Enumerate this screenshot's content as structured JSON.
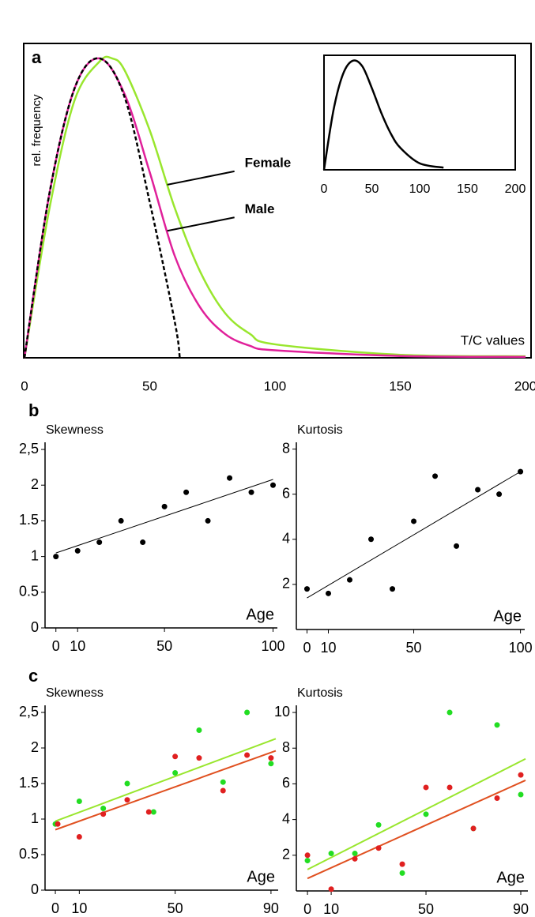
{
  "panel_labels": [
    "a",
    "b",
    "c"
  ],
  "chart_data": [
    {
      "type": "line",
      "ylabel": "rel. frequency",
      "xlabel": "T/C values",
      "xlim": [
        -0.3,
        202.2
      ],
      "ylim": [
        0,
        1.05
      ],
      "xticks": [
        0,
        50,
        100,
        150,
        200
      ],
      "frame": true,
      "series": [
        {
          "name": "Female",
          "color": "#99e62e",
          "x": [
            0,
            10,
            20,
            30,
            35,
            40,
            50,
            60,
            70,
            80,
            90,
            100,
            150,
            200
          ],
          "values": [
            0,
            0.5,
            0.86,
            0.99,
            1.0,
            0.96,
            0.76,
            0.5,
            0.29,
            0.15,
            0.08,
            0.045,
            0.01,
            0.005
          ]
        },
        {
          "name": "Male",
          "color": "#e0209a",
          "x": [
            0,
            10,
            20,
            30,
            40,
            50,
            60,
            70,
            80,
            90,
            100,
            150,
            200
          ],
          "values": [
            0,
            0.55,
            0.9,
            1.0,
            0.88,
            0.62,
            0.34,
            0.17,
            0.08,
            0.04,
            0.025,
            0.006,
            0.003
          ]
        },
        {
          "color": "#000000",
          "dashed": true,
          "x": [
            0,
            10,
            20,
            30,
            40,
            50,
            60,
            62
          ],
          "values": [
            0,
            0.55,
            0.9,
            1.0,
            0.87,
            0.52,
            0.12,
            0
          ]
        }
      ]
    },
    {
      "type": "line",
      "xlim": [
        0,
        200
      ],
      "ylim": [
        0,
        1.05
      ],
      "xticks": [
        0,
        50,
        100,
        150,
        200
      ],
      "frame": true,
      "series": [
        {
          "color": "#000000",
          "x": [
            0,
            10,
            20,
            30,
            40,
            50,
            60,
            70,
            80,
            100,
            125
          ],
          "values": [
            0,
            0.55,
            0.88,
            1.0,
            0.95,
            0.75,
            0.52,
            0.33,
            0.2,
            0.06,
            0.02
          ]
        }
      ]
    },
    {
      "type": "scatter",
      "ylabel": "Skewness",
      "xlabel": "Age",
      "xlim": [
        -5,
        102
      ],
      "ylim": [
        0,
        2.6
      ],
      "xticks": [
        0,
        10,
        50,
        100
      ],
      "yticks": [
        0,
        0.5,
        1,
        1.5,
        2,
        {
          "value": 2.5,
          "label": "2,5"
        }
      ],
      "series": [
        {
          "color": "#000000",
          "x": [
            0,
            10,
            20,
            30,
            40,
            50,
            60,
            70,
            80,
            90,
            100
          ],
          "values": [
            1.0,
            1.08,
            1.2,
            1.5,
            1.2,
            1.7,
            1.9,
            1.5,
            2.1,
            1.9,
            2.0
          ],
          "trend": {
            "x": [
              0,
              100
            ],
            "values": [
              1.05,
              2.08
            ]
          }
        }
      ]
    },
    {
      "type": "scatter",
      "ylabel": "Kurtosis",
      "xlabel": "Age",
      "xlim": [
        -5,
        102
      ],
      "ylim": [
        0,
        8.3
      ],
      "xticks": [
        0,
        10,
        50,
        100
      ],
      "yticks": [
        2,
        4,
        6,
        8
      ],
      "series": [
        {
          "color": "#000000",
          "x": [
            0,
            10,
            20,
            30,
            40,
            50,
            60,
            70,
            80,
            90,
            100
          ],
          "values": [
            1.8,
            1.6,
            2.2,
            4.0,
            1.8,
            4.8,
            6.8,
            3.7,
            6.2,
            6.0,
            7.0
          ],
          "trend": {
            "x": [
              0,
              100
            ],
            "values": [
              1.4,
              7.0
            ]
          }
        }
      ]
    },
    {
      "type": "scatter",
      "ylabel": "Skewness",
      "xlabel": "Age",
      "xlim": [
        -4.3,
        93
      ],
      "ylim": [
        0,
        2.6
      ],
      "xticks": [
        0,
        10,
        50,
        90
      ],
      "yticks": [
        0,
        0.5,
        1,
        1.5,
        2,
        {
          "value": 2.5,
          "label": "2,5"
        }
      ],
      "series": [
        {
          "color": "#22dd22",
          "x": [
            0,
            10,
            20,
            30,
            41,
            50,
            60,
            70,
            80,
            90
          ],
          "values": [
            0.93,
            1.25,
            1.15,
            1.5,
            1.1,
            1.65,
            2.25,
            1.52,
            2.5,
            1.78
          ],
          "trend": {
            "x": [
              0,
              92
            ],
            "values": [
              0.97,
              2.13
            ],
            "color": "#99e62e"
          }
        },
        {
          "color": "#e02020",
          "x": [
            1,
            10,
            20,
            30,
            39,
            50,
            60,
            70,
            80,
            90
          ],
          "values": [
            0.93,
            0.75,
            1.07,
            1.27,
            1.1,
            1.88,
            1.86,
            1.4,
            1.9,
            1.86
          ],
          "trend": {
            "x": [
              0,
              92
            ],
            "values": [
              0.85,
              1.96
            ],
            "color": "#e05020"
          }
        }
      ]
    },
    {
      "type": "scatter",
      "ylabel": "Kurtosis",
      "xlabel": "Age",
      "xlim": [
        -4.7,
        93
      ],
      "ylim": [
        0,
        10.4
      ],
      "xticks": [
        0,
        10,
        50,
        90
      ],
      "yticks": [
        2,
        4,
        6,
        8,
        10
      ],
      "series": [
        {
          "color": "#22dd22",
          "x": [
            0,
            10,
            20,
            30,
            40,
            50,
            60,
            70,
            80,
            90
          ],
          "values": [
            1.7,
            2.1,
            2.1,
            3.7,
            1.0,
            4.3,
            10.0,
            3.5,
            9.3,
            5.4
          ],
          "trend": {
            "x": [
              0,
              92
            ],
            "values": [
              1.2,
              7.4
            ],
            "color": "#99e62e"
          }
        },
        {
          "color": "#e02020",
          "x": [
            0,
            10,
            20,
            30,
            40,
            50,
            60,
            70,
            80,
            90
          ],
          "values": [
            2.0,
            0.1,
            1.8,
            2.4,
            1.5,
            5.8,
            5.8,
            3.5,
            5.2,
            6.5
          ],
          "trend": {
            "x": [
              0,
              92
            ],
            "values": [
              0.7,
              6.2
            ],
            "color": "#e05020"
          }
        }
      ]
    }
  ]
}
